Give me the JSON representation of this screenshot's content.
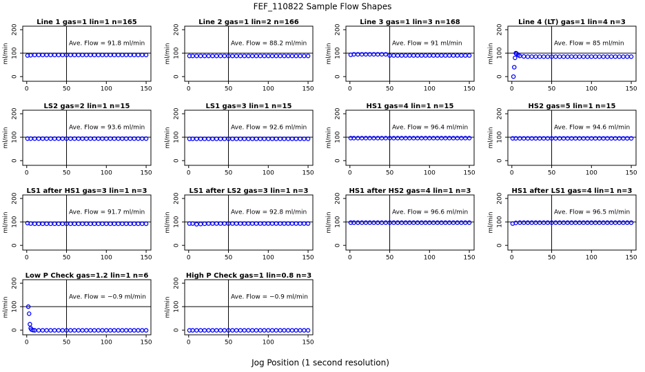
{
  "title": "FEF_110822  Sample Flow Shapes",
  "xlabel": "Jog Position (1 second resolution)",
  "chart_data": [
    {
      "type": "scatter",
      "title": "Line 1 gas=1 lin=1 n=165",
      "annotation": "Ave. Flow = 91.8  ml/min",
      "ylabel": "ml/min",
      "color": "#0000ff",
      "xlim": [
        -5,
        156
      ],
      "ylim": [
        -20,
        215
      ],
      "xticks": [
        0,
        50,
        100,
        150
      ],
      "yticks": [
        0,
        100,
        200
      ],
      "vline": 50,
      "hline": 100,
      "x": [
        1,
        5,
        10,
        15,
        20,
        25,
        30,
        35,
        40,
        45,
        50,
        55,
        60,
        65,
        70,
        75,
        80,
        85,
        90,
        95,
        100,
        105,
        110,
        115,
        120,
        125,
        130,
        135,
        140,
        145,
        150
      ],
      "values": [
        90,
        91,
        92,
        92,
        92,
        92,
        92,
        92,
        92,
        92,
        92,
        92,
        92,
        92,
        92,
        92,
        92,
        92,
        92,
        92,
        92,
        92,
        92,
        92,
        92,
        92,
        92,
        92,
        92,
        92,
        92
      ]
    },
    {
      "type": "scatter",
      "title": "Line 2 gas=1 lin=2 n=166",
      "annotation": "Ave. Flow = 88.2  ml/min",
      "ylabel": "ml/min",
      "color": "#0000ff",
      "xlim": [
        -5,
        156
      ],
      "ylim": [
        -20,
        215
      ],
      "xticks": [
        0,
        50,
        100,
        150
      ],
      "yticks": [
        0,
        100,
        200
      ],
      "vline": 50,
      "hline": 100,
      "x": [
        1,
        5,
        10,
        15,
        20,
        25,
        30,
        35,
        40,
        45,
        50,
        55,
        60,
        65,
        70,
        75,
        80,
        85,
        90,
        95,
        100,
        105,
        110,
        115,
        120,
        125,
        130,
        135,
        140,
        145,
        150
      ],
      "values": [
        88,
        88,
        88,
        88,
        88,
        88,
        88,
        88,
        88,
        88,
        88,
        88,
        88,
        88,
        88,
        88,
        88,
        88,
        88,
        88,
        88,
        88,
        88,
        88,
        88,
        88,
        88,
        88,
        88,
        88,
        88
      ]
    },
    {
      "type": "scatter",
      "title": "Line 3 gas=1 lin=3 n=168",
      "annotation": "Ave. Flow = 91  ml/min",
      "ylabel": "ml/min",
      "color": "#0000ff",
      "xlim": [
        -5,
        156
      ],
      "ylim": [
        -20,
        215
      ],
      "xticks": [
        0,
        50,
        100,
        150
      ],
      "yticks": [
        0,
        100,
        200
      ],
      "vline": 50,
      "hline": 100,
      "x": [
        1,
        5,
        10,
        15,
        20,
        25,
        30,
        35,
        40,
        45,
        50,
        55,
        60,
        65,
        70,
        75,
        80,
        85,
        90,
        95,
        100,
        105,
        110,
        115,
        120,
        125,
        130,
        135,
        140,
        145,
        150
      ],
      "values": [
        93,
        95,
        95,
        95,
        95,
        95,
        95,
        95,
        95,
        95,
        90,
        90,
        90,
        90,
        90,
        90,
        90,
        90,
        90,
        90,
        90,
        90,
        90,
        90,
        90,
        90,
        90,
        90,
        90,
        90,
        90
      ]
    },
    {
      "type": "scatter",
      "title": "Line 4 (LT) gas=1 lin=4 n=3",
      "annotation": "Ave. Flow = 85  ml/min",
      "ylabel": "ml/min",
      "color": "#0000ff",
      "xlim": [
        -5,
        156
      ],
      "ylim": [
        -20,
        215
      ],
      "xticks": [
        0,
        50,
        100,
        150
      ],
      "yticks": [
        0,
        100,
        200
      ],
      "vline": 50,
      "hline": 100,
      "x": [
        2,
        3,
        4,
        5,
        6,
        8,
        10,
        15,
        20,
        25,
        30,
        35,
        40,
        45,
        50,
        55,
        60,
        65,
        70,
        75,
        80,
        85,
        90,
        95,
        100,
        105,
        110,
        115,
        120,
        125,
        130,
        135,
        140,
        145,
        150
      ],
      "values": [
        0,
        40,
        80,
        100,
        98,
        92,
        88,
        86,
        85,
        85,
        85,
        85,
        85,
        85,
        85,
        85,
        85,
        85,
        85,
        85,
        85,
        85,
        85,
        85,
        85,
        85,
        85,
        85,
        85,
        85,
        85,
        85,
        85,
        85,
        85
      ]
    },
    {
      "type": "scatter",
      "title": "LS2 gas=2 lin=1 n=15",
      "annotation": "Ave. Flow = 93.6  ml/min",
      "ylabel": "ml/min",
      "color": "#0000ff",
      "xlim": [
        -5,
        156
      ],
      "ylim": [
        -20,
        215
      ],
      "xticks": [
        0,
        50,
        100,
        150
      ],
      "yticks": [
        0,
        100,
        200
      ],
      "vline": 50,
      "hline": 100,
      "x": [
        1,
        5,
        10,
        15,
        20,
        25,
        30,
        35,
        40,
        45,
        50,
        55,
        60,
        65,
        70,
        75,
        80,
        85,
        90,
        95,
        100,
        105,
        110,
        115,
        120,
        125,
        130,
        135,
        140,
        145,
        150
      ],
      "values": [
        94,
        94,
        94,
        94,
        94,
        94,
        94,
        94,
        94,
        94,
        94,
        94,
        94,
        94,
        94,
        94,
        94,
        94,
        94,
        94,
        94,
        94,
        94,
        94,
        94,
        94,
        94,
        94,
        94,
        94,
        94
      ]
    },
    {
      "type": "scatter",
      "title": "LS1 gas=3 lin=1 n=15",
      "annotation": "Ave. Flow = 92.6  ml/min",
      "ylabel": "ml/min",
      "color": "#0000ff",
      "xlim": [
        -5,
        156
      ],
      "ylim": [
        -20,
        215
      ],
      "xticks": [
        0,
        50,
        100,
        150
      ],
      "yticks": [
        0,
        100,
        200
      ],
      "vline": 50,
      "hline": 100,
      "x": [
        1,
        5,
        10,
        15,
        20,
        25,
        30,
        35,
        40,
        45,
        50,
        55,
        60,
        65,
        70,
        75,
        80,
        85,
        90,
        95,
        100,
        105,
        110,
        115,
        120,
        125,
        130,
        135,
        140,
        145,
        150
      ],
      "values": [
        93,
        93,
        93,
        93,
        93,
        93,
        93,
        93,
        93,
        93,
        93,
        93,
        93,
        93,
        93,
        93,
        93,
        93,
        93,
        93,
        93,
        93,
        93,
        93,
        93,
        93,
        93,
        93,
        93,
        93,
        93
      ]
    },
    {
      "type": "scatter",
      "title": "HS1 gas=4 lin=1 n=15",
      "annotation": "Ave. Flow = 96.4  ml/min",
      "ylabel": "ml/min",
      "color": "#0000ff",
      "xlim": [
        -5,
        156
      ],
      "ylim": [
        -20,
        215
      ],
      "xticks": [
        0,
        50,
        100,
        150
      ],
      "yticks": [
        0,
        100,
        200
      ],
      "vline": 50,
      "hline": 100,
      "x": [
        1,
        5,
        10,
        15,
        20,
        25,
        30,
        35,
        40,
        45,
        50,
        55,
        60,
        65,
        70,
        75,
        80,
        85,
        90,
        95,
        100,
        105,
        110,
        115,
        120,
        125,
        130,
        135,
        140,
        145,
        150
      ],
      "values": [
        96,
        96,
        96,
        96,
        96,
        96,
        96,
        96,
        96,
        96,
        96,
        96,
        96,
        96,
        96,
        96,
        96,
        96,
        96,
        96,
        96,
        96,
        96,
        96,
        96,
        96,
        96,
        96,
        96,
        96,
        96
      ]
    },
    {
      "type": "scatter",
      "title": "HS2 gas=5 lin=1 n=15",
      "annotation": "Ave. Flow = 94.6  ml/min",
      "ylabel": "ml/min",
      "color": "#0000ff",
      "xlim": [
        -5,
        156
      ],
      "ylim": [
        -20,
        215
      ],
      "xticks": [
        0,
        50,
        100,
        150
      ],
      "yticks": [
        0,
        100,
        200
      ],
      "vline": 50,
      "hline": 100,
      "x": [
        1,
        5,
        10,
        15,
        20,
        25,
        30,
        35,
        40,
        45,
        50,
        55,
        60,
        65,
        70,
        75,
        80,
        85,
        90,
        95,
        100,
        105,
        110,
        115,
        120,
        125,
        130,
        135,
        140,
        145,
        150
      ],
      "values": [
        95,
        95,
        95,
        95,
        95,
        95,
        95,
        95,
        95,
        95,
        95,
        95,
        95,
        95,
        95,
        95,
        95,
        95,
        95,
        95,
        95,
        95,
        95,
        95,
        95,
        95,
        95,
        95,
        95,
        95,
        95
      ]
    },
    {
      "type": "scatter",
      "title": "LS1 after HS1 gas=3 lin=1 n=3",
      "annotation": "Ave. Flow = 91.7  ml/min",
      "ylabel": "ml/min",
      "color": "#0000ff",
      "xlim": [
        -5,
        156
      ],
      "ylim": [
        -20,
        215
      ],
      "xticks": [
        0,
        50,
        100,
        150
      ],
      "yticks": [
        0,
        100,
        200
      ],
      "vline": 50,
      "hline": 100,
      "x": [
        1,
        5,
        10,
        15,
        20,
        25,
        30,
        35,
        40,
        45,
        50,
        55,
        60,
        65,
        70,
        75,
        80,
        85,
        90,
        95,
        100,
        105,
        110,
        115,
        120,
        125,
        130,
        135,
        140,
        145,
        150
      ],
      "values": [
        95,
        93,
        92,
        92,
        92,
        92,
        92,
        92,
        92,
        92,
        92,
        92,
        92,
        92,
        92,
        92,
        92,
        92,
        92,
        92,
        92,
        92,
        92,
        92,
        92,
        92,
        92,
        92,
        92,
        92,
        92
      ]
    },
    {
      "type": "scatter",
      "title": "LS1 after LS2 gas=3 lin=1 n=3",
      "annotation": "Ave. Flow = 92.8  ml/min",
      "ylabel": "ml/min",
      "color": "#0000ff",
      "xlim": [
        -5,
        156
      ],
      "ylim": [
        -20,
        215
      ],
      "xticks": [
        0,
        50,
        100,
        150
      ],
      "yticks": [
        0,
        100,
        200
      ],
      "vline": 50,
      "hline": 100,
      "x": [
        1,
        5,
        10,
        15,
        20,
        25,
        30,
        35,
        40,
        45,
        50,
        55,
        60,
        65,
        70,
        75,
        80,
        85,
        90,
        95,
        100,
        105,
        110,
        115,
        120,
        125,
        130,
        135,
        140,
        145,
        150
      ],
      "values": [
        93,
        93,
        90,
        91,
        92,
        93,
        93,
        93,
        93,
        93,
        93,
        93,
        93,
        93,
        93,
        93,
        93,
        93,
        93,
        93,
        93,
        93,
        93,
        93,
        93,
        93,
        93,
        93,
        93,
        93,
        93
      ]
    },
    {
      "type": "scatter",
      "title": "HS1 after HS2 gas=4 lin=1 n=3",
      "annotation": "Ave. Flow = 96.6  ml/min",
      "ylabel": "ml/min",
      "color": "#0000ff",
      "xlim": [
        -5,
        156
      ],
      "ylim": [
        -20,
        215
      ],
      "xticks": [
        0,
        50,
        100,
        150
      ],
      "yticks": [
        0,
        100,
        200
      ],
      "vline": 50,
      "hline": 100,
      "x": [
        1,
        5,
        10,
        15,
        20,
        25,
        30,
        35,
        40,
        45,
        50,
        55,
        60,
        65,
        70,
        75,
        80,
        85,
        90,
        95,
        100,
        105,
        110,
        115,
        120,
        125,
        130,
        135,
        140,
        145,
        150
      ],
      "values": [
        97,
        97,
        97,
        97,
        97,
        97,
        97,
        97,
        97,
        97,
        97,
        97,
        97,
        97,
        97,
        97,
        97,
        97,
        97,
        97,
        97,
        97,
        97,
        97,
        97,
        97,
        97,
        97,
        97,
        97,
        97
      ]
    },
    {
      "type": "scatter",
      "title": "HS1 after LS1 gas=4 lin=1 n=3",
      "annotation": "Ave. Flow = 96.5  ml/min",
      "ylabel": "ml/min",
      "color": "#0000ff",
      "xlim": [
        -5,
        156
      ],
      "ylim": [
        -20,
        215
      ],
      "xticks": [
        0,
        50,
        100,
        150
      ],
      "yticks": [
        0,
        100,
        200
      ],
      "vline": 50,
      "hline": 100,
      "x": [
        1,
        5,
        10,
        15,
        20,
        25,
        30,
        35,
        40,
        45,
        50,
        55,
        60,
        65,
        70,
        75,
        80,
        85,
        90,
        95,
        100,
        105,
        110,
        115,
        120,
        125,
        130,
        135,
        140,
        145,
        150
      ],
      "values": [
        93,
        96,
        97,
        97,
        97,
        97,
        97,
        97,
        97,
        97,
        97,
        97,
        97,
        97,
        97,
        97,
        97,
        97,
        97,
        97,
        97,
        97,
        97,
        97,
        97,
        97,
        97,
        97,
        97,
        97,
        97
      ]
    },
    {
      "type": "scatter",
      "title": "Low P Check gas=1.2 lin=1 n=6",
      "annotation": "Ave. Flow = −0.9  ml/min",
      "ylabel": "ml/min",
      "color": "#0000ff",
      "xlim": [
        -5,
        156
      ],
      "ylim": [
        -20,
        215
      ],
      "xticks": [
        0,
        50,
        100,
        150
      ],
      "yticks": [
        0,
        100,
        200
      ],
      "vline": 50,
      "hline": 100,
      "x": [
        2,
        3,
        4,
        5,
        6,
        8,
        10,
        15,
        20,
        25,
        30,
        35,
        40,
        45,
        50,
        55,
        60,
        65,
        70,
        75,
        80,
        85,
        90,
        95,
        100,
        105,
        110,
        115,
        120,
        125,
        130,
        135,
        140,
        145,
        150
      ],
      "values": [
        100,
        70,
        25,
        8,
        2,
        0,
        -1,
        -1,
        -1,
        -1,
        -1,
        -1,
        -1,
        -1,
        -1,
        -1,
        -1,
        -1,
        -1,
        -1,
        -1,
        -1,
        -1,
        -1,
        -1,
        -1,
        -1,
        -1,
        -1,
        -1,
        -1,
        -1,
        -1,
        -1,
        -1
      ]
    },
    {
      "type": "scatter",
      "title": "High P Check gas=1 lin=0.8 n=3",
      "annotation": "Ave. Flow = −0.9  ml/min",
      "ylabel": "ml/min",
      "color": "#0000ff",
      "xlim": [
        -5,
        156
      ],
      "ylim": [
        -20,
        215
      ],
      "xticks": [
        0,
        50,
        100,
        150
      ],
      "yticks": [
        0,
        100,
        200
      ],
      "vline": 50,
      "hline": 100,
      "x": [
        1,
        5,
        10,
        15,
        20,
        25,
        30,
        35,
        40,
        45,
        50,
        55,
        60,
        65,
        70,
        75,
        80,
        85,
        90,
        95,
        100,
        105,
        110,
        115,
        120,
        125,
        130,
        135,
        140,
        145,
        150
      ],
      "values": [
        -1,
        -1,
        -1,
        -1,
        -1,
        -1,
        -1,
        -1,
        -1,
        -1,
        -1,
        -1,
        -1,
        -1,
        -1,
        -1,
        -1,
        -1,
        -1,
        -1,
        -1,
        -1,
        -1,
        -1,
        -1,
        -1,
        -1,
        -1,
        -1,
        -1,
        -1
      ]
    }
  ]
}
